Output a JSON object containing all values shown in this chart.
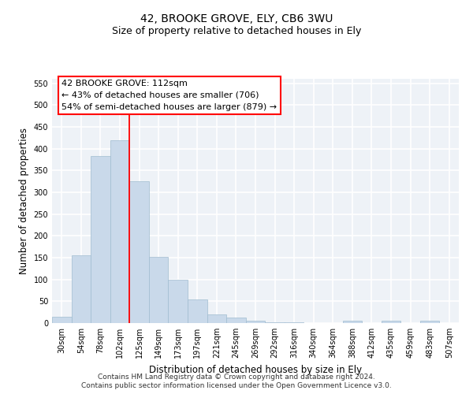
{
  "title": "42, BROOKE GROVE, ELY, CB6 3WU",
  "subtitle": "Size of property relative to detached houses in Ely",
  "xlabel": "Distribution of detached houses by size in Ely",
  "ylabel": "Number of detached properties",
  "categories": [
    "30sqm",
    "54sqm",
    "78sqm",
    "102sqm",
    "125sqm",
    "149sqm",
    "173sqm",
    "197sqm",
    "221sqm",
    "245sqm",
    "269sqm",
    "292sqm",
    "316sqm",
    "340sqm",
    "364sqm",
    "388sqm",
    "412sqm",
    "435sqm",
    "459sqm",
    "483sqm",
    "507sqm"
  ],
  "values": [
    15,
    155,
    383,
    420,
    325,
    152,
    100,
    55,
    20,
    12,
    5,
    2,
    1,
    0,
    0,
    5,
    0,
    5,
    0,
    5,
    0
  ],
  "bar_color": "#c9d9ea",
  "bar_edge_color": "#a0bcd0",
  "vline_x": 3.5,
  "vline_color": "red",
  "annotation_text": "42 BROOKE GROVE: 112sqm\n← 43% of detached houses are smaller (706)\n54% of semi-detached houses are larger (879) →",
  "annotation_box_color": "white",
  "annotation_box_edge": "red",
  "ylim": [
    0,
    560
  ],
  "yticks": [
    0,
    50,
    100,
    150,
    200,
    250,
    300,
    350,
    400,
    450,
    500,
    550
  ],
  "background_color": "#eef2f7",
  "grid_color": "white",
  "footer": "Contains HM Land Registry data © Crown copyright and database right 2024.\nContains public sector information licensed under the Open Government Licence v3.0.",
  "title_fontsize": 10,
  "subtitle_fontsize": 9,
  "axis_label_fontsize": 8.5,
  "tick_fontsize": 7,
  "annotation_fontsize": 8,
  "footer_fontsize": 6.5
}
